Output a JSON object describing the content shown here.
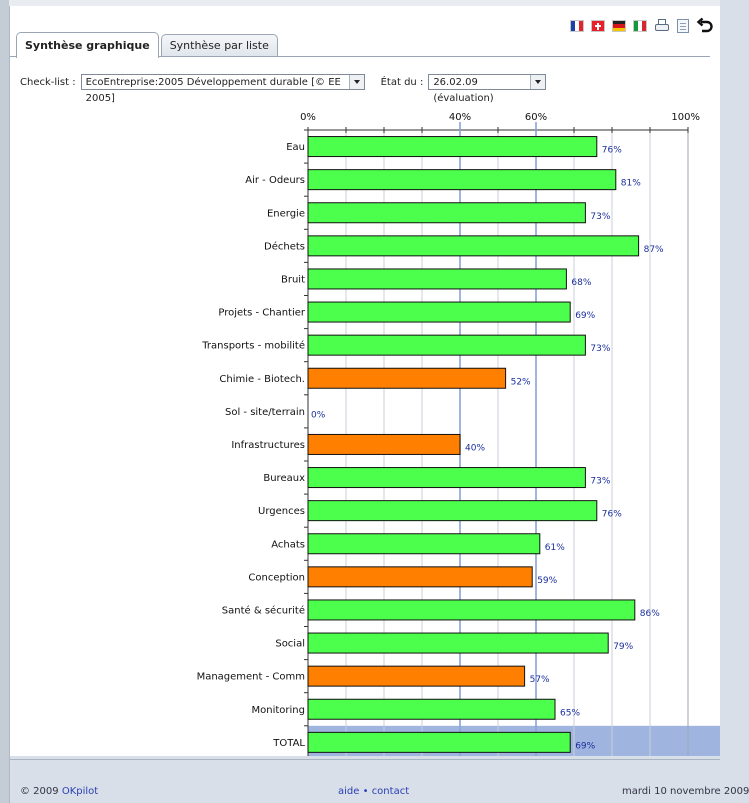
{
  "tabs": [
    {
      "label": "Synthèse graphique",
      "active": true
    },
    {
      "label": "Synthèse par liste",
      "active": false
    }
  ],
  "toolbar": {
    "icons": [
      "flag-fr-icon",
      "flag-ch-icon",
      "flag-de-icon",
      "flag-it-icon",
      "printer-icon",
      "document-icon",
      "back-icon"
    ]
  },
  "filters": {
    "checklist_label": "Check-list :",
    "checklist_value": "EcoEntreprise:2005 Développement durable [© EE 2005]",
    "etat_label": "État du :",
    "etat_value": "26.02.09 (évaluation)"
  },
  "chart_data": {
    "type": "bar",
    "orientation": "horizontal",
    "xlim": [
      0,
      100
    ],
    "tick_labels": [
      "0%",
      "40%",
      "60%",
      "100%"
    ],
    "tick_values": [
      0,
      40,
      60,
      100
    ],
    "reference_lines": [
      40,
      60
    ],
    "categories": [
      "Eau",
      "Air - Odeurs",
      "Energie",
      "Déchets",
      "Bruit",
      "Projets - Chantier",
      "Transports - mobilité",
      "Chimie - Biotech.",
      "Sol - site/terrain",
      "Infrastructures",
      "Bureaux",
      "Urgences",
      "Achats",
      "Conception",
      "Santé & sécurité",
      "Social",
      "Management - Comm",
      "Monitoring",
      "TOTAL"
    ],
    "values": [
      76,
      81,
      73,
      87,
      68,
      69,
      73,
      52,
      0,
      40,
      73,
      76,
      61,
      59,
      86,
      79,
      57,
      65,
      69
    ],
    "value_labels": [
      "76%",
      "81%",
      "73%",
      "87%",
      "68%",
      "69%",
      "73%",
      "52%",
      "0%",
      "40%",
      "73%",
      "76%",
      "61%",
      "59%",
      "86%",
      "79%",
      "57%",
      "65%",
      "69%"
    ],
    "colors": {
      "good": "#4cff4c",
      "medium": "#ff8000",
      "total_row_bg": "#9fb5e0",
      "grid": "#c9cfd7",
      "reference": "#8aa2d8",
      "label": "#1a2e9c"
    },
    "bar_status": [
      "good",
      "good",
      "good",
      "good",
      "good",
      "good",
      "good",
      "medium",
      "medium",
      "medium",
      "good",
      "good",
      "good",
      "medium",
      "good",
      "good",
      "medium",
      "good",
      "good"
    ]
  },
  "footer": {
    "copyright_prefix": "© 2009",
    "copyright_link": "OKpilot",
    "help_link": "aide",
    "separator": "•",
    "contact_link": "contact",
    "date": "mardi 10 novembre 2009"
  }
}
